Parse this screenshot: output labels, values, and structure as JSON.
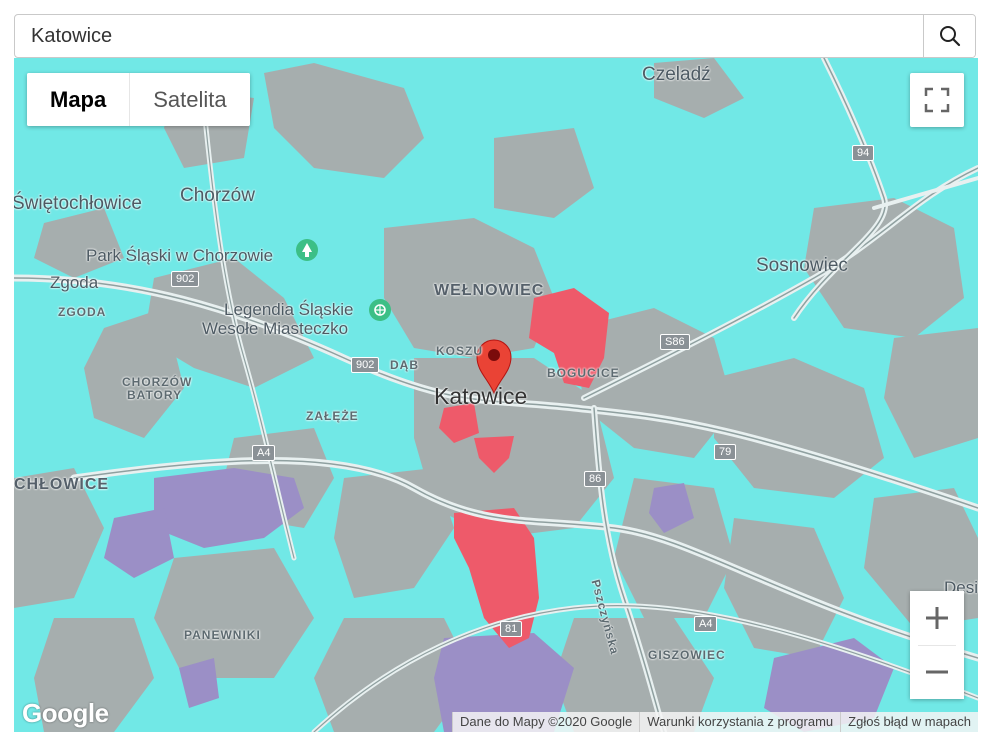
{
  "search": {
    "value": "Katowice",
    "icon": "search-icon"
  },
  "map_type": {
    "options": [
      "Mapa",
      "Satelita"
    ],
    "selected": "Mapa"
  },
  "controls": {
    "fullscreen_icon": "fullscreen-icon",
    "zoom_in_icon": "plus-icon",
    "zoom_out_icon": "minus-icon"
  },
  "map": {
    "marker_label": "Katowice",
    "labels": {
      "czeladz": "Czeladź",
      "chorzow": "Chorzów",
      "swietochlowice": "Świętochłowice",
      "park_slaski": "Park Śląski w Chorzowie",
      "zgoda": "Zgoda",
      "zgoda_district": "ZGODA",
      "legendia_1": "Legendia Śląskie",
      "legendia_2": "Wesołe Miasteczko",
      "welnowiec": "WEŁNOWIEC",
      "koszutka": "KOSZU",
      "dab": "DĄB",
      "bogucice": "BOGUCICE",
      "katowice": "Katowice",
      "chorzow_batory_1": "CHORZÓW",
      "chorzow_batory_2": "BATORY",
      "zaleze": "ZAŁĘŻE",
      "chlowice": "CHŁOWICE",
      "sosnowiec": "Sosnowiec",
      "panewniki": "PANEWNIKI",
      "giszowiec": "GISZOWIEC",
      "pszczynska": "Pszczyńska",
      "desi": "Desi"
    },
    "road_shields": {
      "r94": "94",
      "r902a": "902",
      "r902b": "902",
      "s86": "S86",
      "r79": "79",
      "r86": "86",
      "a4a": "A4",
      "a4b": "A4",
      "r81": "81"
    },
    "colors": {
      "coverage_cyan": "#71e8e6",
      "urban_gray": "#a6aeae",
      "hotspot_red": "#ee5a6a",
      "purple_zone": "#9b8fc6",
      "marker_red": "#ea4335"
    }
  },
  "attribution": {
    "logo": "Google",
    "items": [
      "Dane do Mapy ©2020 Google",
      "Warunki korzystania z programu",
      "Zgłoś błąd w mapach"
    ]
  }
}
